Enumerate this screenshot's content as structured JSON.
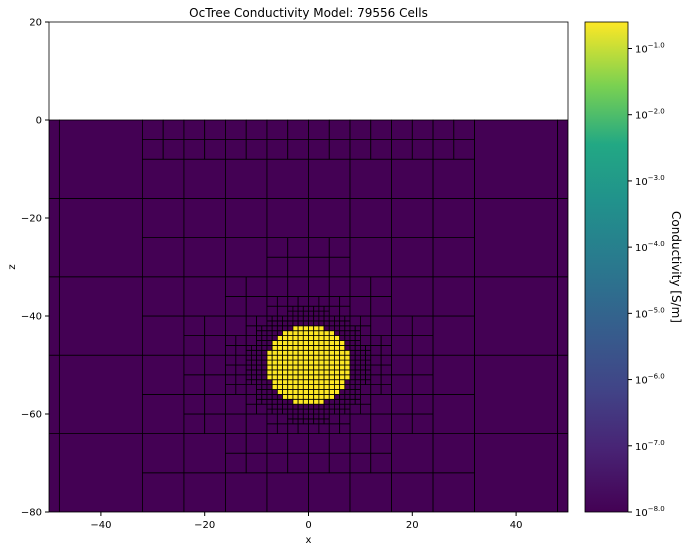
{
  "chart_data": {
    "type": "heatmap",
    "title": "OcTree Conductivity Model: 79556 Cells",
    "xlabel": "x",
    "ylabel": "z",
    "xlim": [
      -50,
      50
    ],
    "ylim": [
      -80,
      20
    ],
    "xticks": [
      -40,
      -20,
      0,
      20,
      40
    ],
    "yticks": [
      20,
      0,
      -20,
      -40,
      -60,
      -80
    ],
    "grid": false,
    "mesh_lines": true,
    "model": {
      "background_log10_conductivity": -8,
      "sphere_log10_conductivity": -1,
      "sphere_center": [
        0,
        -50
      ],
      "sphere_radius": 8,
      "air_above": 0
    },
    "colorbar": {
      "label": "Conductivity [S/m]",
      "scale": "log",
      "colormap": "viridis",
      "tick_exponents": [
        "-1.0",
        "-2.0",
        "-3.0",
        "-4.0",
        "-5.0",
        "-6.0",
        "-7.0",
        "-8.0"
      ],
      "tick_values_log10": [
        -1,
        -2,
        -3,
        -4,
        -5,
        -6,
        -7,
        -8
      ],
      "range_log10": [
        -8,
        -0.6
      ]
    },
    "colors": {
      "low": "#440154",
      "high": "#fde725",
      "mesh": "#000000"
    }
  }
}
